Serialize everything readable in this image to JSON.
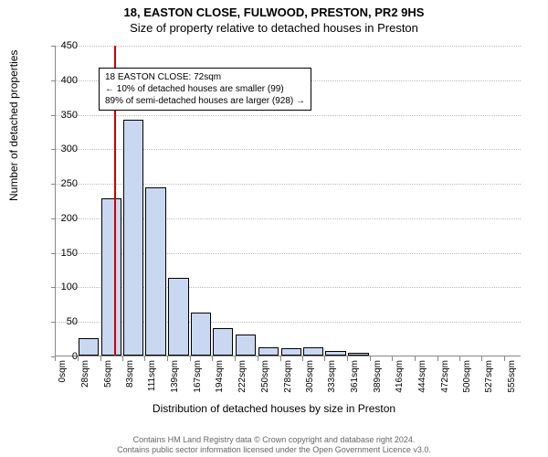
{
  "title": {
    "line1": "18, EASTON CLOSE, FULWOOD, PRESTON, PR2 9HS",
    "line2": "Size of property relative to detached houses in Preston"
  },
  "chart": {
    "type": "histogram",
    "background_color": "#ffffff",
    "grid_color": "#bbbbbb",
    "bar_fill": "#c9d8f0",
    "bar_border": "#000000",
    "ref_line_color": "#cc0000",
    "ref_line_x": 72,
    "ylabel": "Number of detached properties",
    "xlabel": "Distribution of detached houses by size in Preston",
    "ylim": [
      0,
      450
    ],
    "ytick_step": 50,
    "yticks": [
      0,
      50,
      100,
      150,
      200,
      250,
      300,
      350,
      400,
      450
    ],
    "xticks": [
      0,
      28,
      56,
      83,
      111,
      139,
      167,
      194,
      222,
      250,
      278,
      305,
      333,
      361,
      389,
      416,
      444,
      472,
      500,
      527,
      555
    ],
    "xtick_unit": "sqm",
    "xlim": [
      0,
      575
    ],
    "values": [
      0,
      25,
      228,
      342,
      244,
      112,
      62,
      40,
      30,
      12,
      10,
      12,
      6,
      4,
      0,
      0,
      0,
      0,
      0,
      0,
      0
    ],
    "bar_width": 0.9,
    "label_fontsize": 12,
    "tick_fontsize": 11
  },
  "annotation": {
    "line1": "18 EASTON CLOSE: 72sqm",
    "line2": "← 10% of detached houses are smaller (99)",
    "line3": "89% of semi-detached houses are larger (928) →",
    "bgcolor": "#ffffff",
    "bordercolor": "#000000",
    "fontsize": 10,
    "position": "top-left"
  },
  "footer": {
    "line1": "Contains HM Land Registry data © Crown copyright and database right 2024.",
    "line2": "Contains public sector information licensed under the Open Government Licence v3.0.",
    "color": "#666666",
    "fontsize": 9
  }
}
